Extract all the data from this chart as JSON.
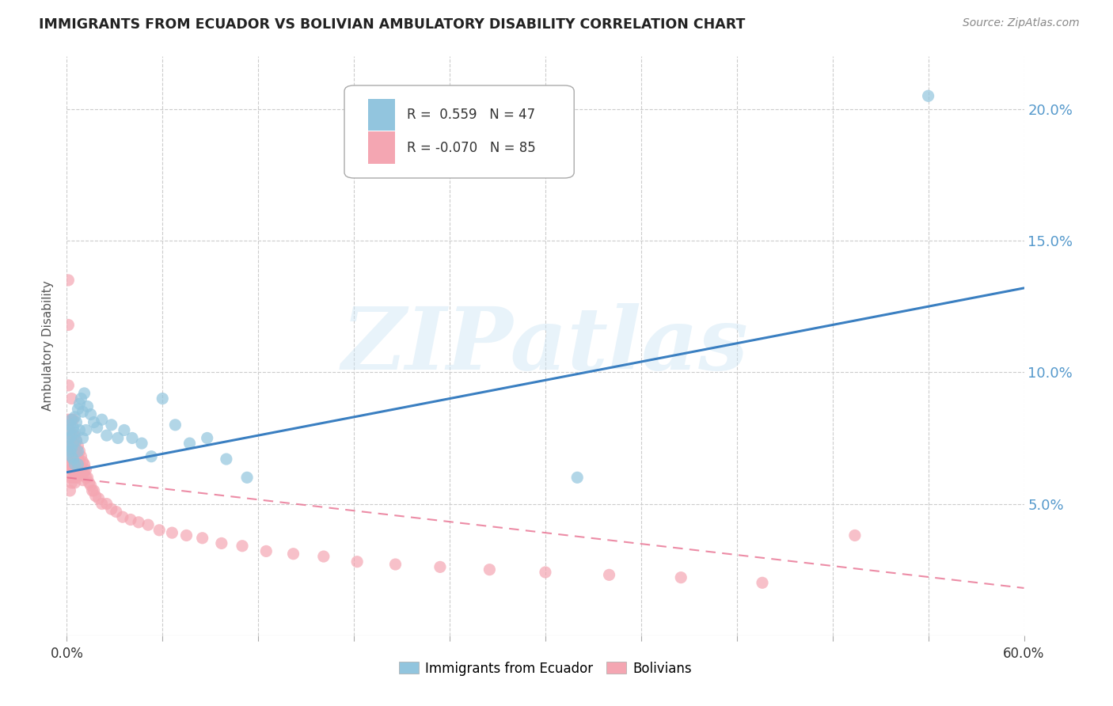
{
  "title": "IMMIGRANTS FROM ECUADOR VS BOLIVIAN AMBULATORY DISABILITY CORRELATION CHART",
  "source": "Source: ZipAtlas.com",
  "ylabel": "Ambulatory Disability",
  "legend_label_1": "Immigrants from Ecuador",
  "legend_label_2": "Bolivians",
  "color_ecuador": "#92C5DE",
  "color_bolivia": "#F4A6B2",
  "color_line_ecuador": "#3a7fc1",
  "color_line_bolivia": "#e87090",
  "background_color": "#ffffff",
  "watermark_text": "ZIPatlas",
  "xlim": [
    0.0,
    0.6
  ],
  "ylim": [
    0.0,
    0.22
  ],
  "yticks": [
    0.05,
    0.1,
    0.15,
    0.2
  ],
  "xtick_positions": [
    0.0,
    0.06,
    0.12,
    0.18,
    0.24,
    0.3,
    0.36,
    0.42,
    0.48,
    0.54,
    0.6
  ],
  "ec_line_x0": 0.0,
  "ec_line_y0": 0.062,
  "ec_line_x1": 0.6,
  "ec_line_y1": 0.132,
  "bo_line_x0": 0.0,
  "bo_line_y0": 0.06,
  "bo_line_x1": 0.6,
  "bo_line_y1": 0.018,
  "ecuador_scatter_x": [
    0.001,
    0.001,
    0.002,
    0.002,
    0.002,
    0.003,
    0.003,
    0.003,
    0.003,
    0.004,
    0.004,
    0.004,
    0.005,
    0.005,
    0.005,
    0.006,
    0.006,
    0.007,
    0.007,
    0.007,
    0.008,
    0.008,
    0.009,
    0.01,
    0.01,
    0.011,
    0.012,
    0.013,
    0.015,
    0.017,
    0.019,
    0.022,
    0.025,
    0.028,
    0.032,
    0.036,
    0.041,
    0.047,
    0.053,
    0.06,
    0.068,
    0.077,
    0.088,
    0.1,
    0.113,
    0.54,
    0.32
  ],
  "ecuador_scatter_y": [
    0.072,
    0.078,
    0.075,
    0.08,
    0.07,
    0.076,
    0.071,
    0.082,
    0.068,
    0.079,
    0.073,
    0.067,
    0.083,
    0.077,
    0.065,
    0.081,
    0.074,
    0.086,
    0.07,
    0.065,
    0.088,
    0.078,
    0.09,
    0.085,
    0.075,
    0.092,
    0.078,
    0.087,
    0.084,
    0.081,
    0.079,
    0.082,
    0.076,
    0.08,
    0.075,
    0.078,
    0.075,
    0.073,
    0.068,
    0.09,
    0.08,
    0.073,
    0.075,
    0.067,
    0.06,
    0.205,
    0.06
  ],
  "bolivia_scatter_x": [
    0.001,
    0.001,
    0.001,
    0.001,
    0.001,
    0.002,
    0.002,
    0.002,
    0.002,
    0.002,
    0.002,
    0.003,
    0.003,
    0.003,
    0.003,
    0.003,
    0.003,
    0.003,
    0.004,
    0.004,
    0.004,
    0.004,
    0.004,
    0.004,
    0.005,
    0.005,
    0.005,
    0.005,
    0.005,
    0.005,
    0.006,
    0.006,
    0.006,
    0.006,
    0.006,
    0.007,
    0.007,
    0.007,
    0.007,
    0.008,
    0.008,
    0.008,
    0.009,
    0.009,
    0.009,
    0.01,
    0.01,
    0.01,
    0.011,
    0.011,
    0.012,
    0.012,
    0.013,
    0.014,
    0.015,
    0.016,
    0.017,
    0.018,
    0.02,
    0.022,
    0.025,
    0.028,
    0.031,
    0.035,
    0.04,
    0.045,
    0.051,
    0.058,
    0.066,
    0.075,
    0.085,
    0.097,
    0.11,
    0.125,
    0.142,
    0.161,
    0.182,
    0.206,
    0.234,
    0.265,
    0.3,
    0.34,
    0.385,
    0.436,
    0.494
  ],
  "bolivia_scatter_y": [
    0.135,
    0.118,
    0.095,
    0.082,
    0.065,
    0.078,
    0.072,
    0.068,
    0.064,
    0.06,
    0.055,
    0.09,
    0.082,
    0.075,
    0.07,
    0.066,
    0.063,
    0.058,
    0.082,
    0.076,
    0.072,
    0.068,
    0.064,
    0.06,
    0.076,
    0.072,
    0.068,
    0.065,
    0.062,
    0.058,
    0.074,
    0.07,
    0.066,
    0.063,
    0.06,
    0.072,
    0.068,
    0.064,
    0.061,
    0.07,
    0.066,
    0.062,
    0.068,
    0.064,
    0.061,
    0.066,
    0.062,
    0.059,
    0.065,
    0.062,
    0.063,
    0.06,
    0.06,
    0.058,
    0.057,
    0.055,
    0.055,
    0.053,
    0.052,
    0.05,
    0.05,
    0.048,
    0.047,
    0.045,
    0.044,
    0.043,
    0.042,
    0.04,
    0.039,
    0.038,
    0.037,
    0.035,
    0.034,
    0.032,
    0.031,
    0.03,
    0.028,
    0.027,
    0.026,
    0.025,
    0.024,
    0.023,
    0.022,
    0.02,
    0.038
  ]
}
